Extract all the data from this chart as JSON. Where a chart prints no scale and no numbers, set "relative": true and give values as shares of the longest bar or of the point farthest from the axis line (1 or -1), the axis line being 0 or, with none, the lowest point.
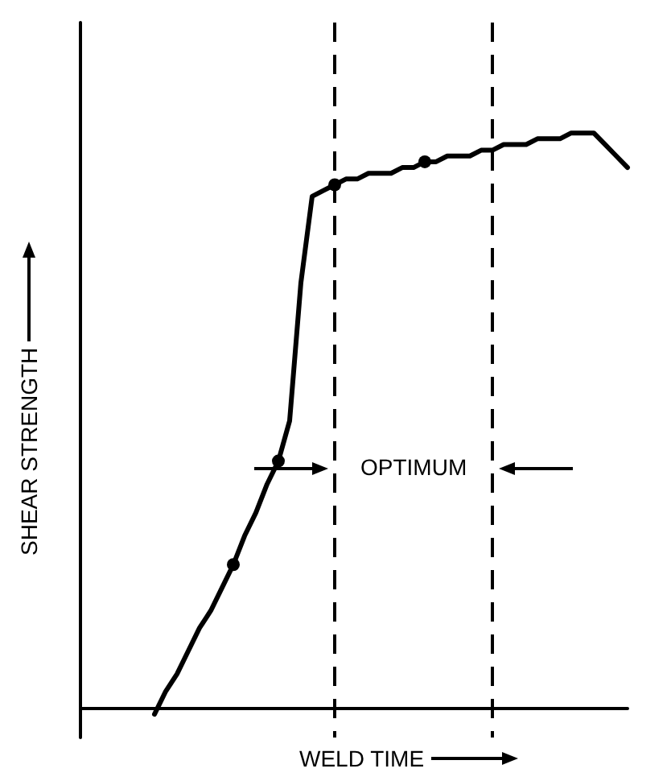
{
  "chart_data": {
    "type": "line",
    "relative": true,
    "xlabel": "WELD TIME",
    "ylabel": "SHEAR STRENGTH",
    "categories": [
      null,
      null,
      null,
      null,
      null,
      null,
      null,
      null,
      null,
      null,
      null,
      null,
      null,
      null,
      null,
      null,
      null,
      null,
      null,
      null,
      null,
      null,
      null,
      null,
      null,
      null,
      null,
      null,
      null,
      null,
      null,
      null,
      null,
      null,
      null,
      null,
      null,
      null,
      null,
      null,
      null,
      null,
      null
    ],
    "series": [
      {
        "color": "#000000",
        "values": [
          -0.01,
          0.03,
          0.06,
          0.1,
          0.14,
          0.17,
          0.21,
          0.25,
          0.3,
          0.34,
          0.39,
          0.43,
          0.5,
          0.74,
          0.89,
          0.9,
          0.91,
          0.92,
          0.92,
          0.93,
          0.93,
          0.93,
          0.94,
          0.94,
          0.95,
          0.95,
          0.96,
          0.96,
          0.96,
          0.97,
          0.97,
          0.98,
          0.98,
          0.98,
          0.99,
          0.99,
          0.99,
          1,
          1,
          1,
          0.98,
          0.96,
          0.94
        ]
      }
    ],
    "annotations": [
      "OPTIMUM"
    ],
    "marker": "none"
  }
}
